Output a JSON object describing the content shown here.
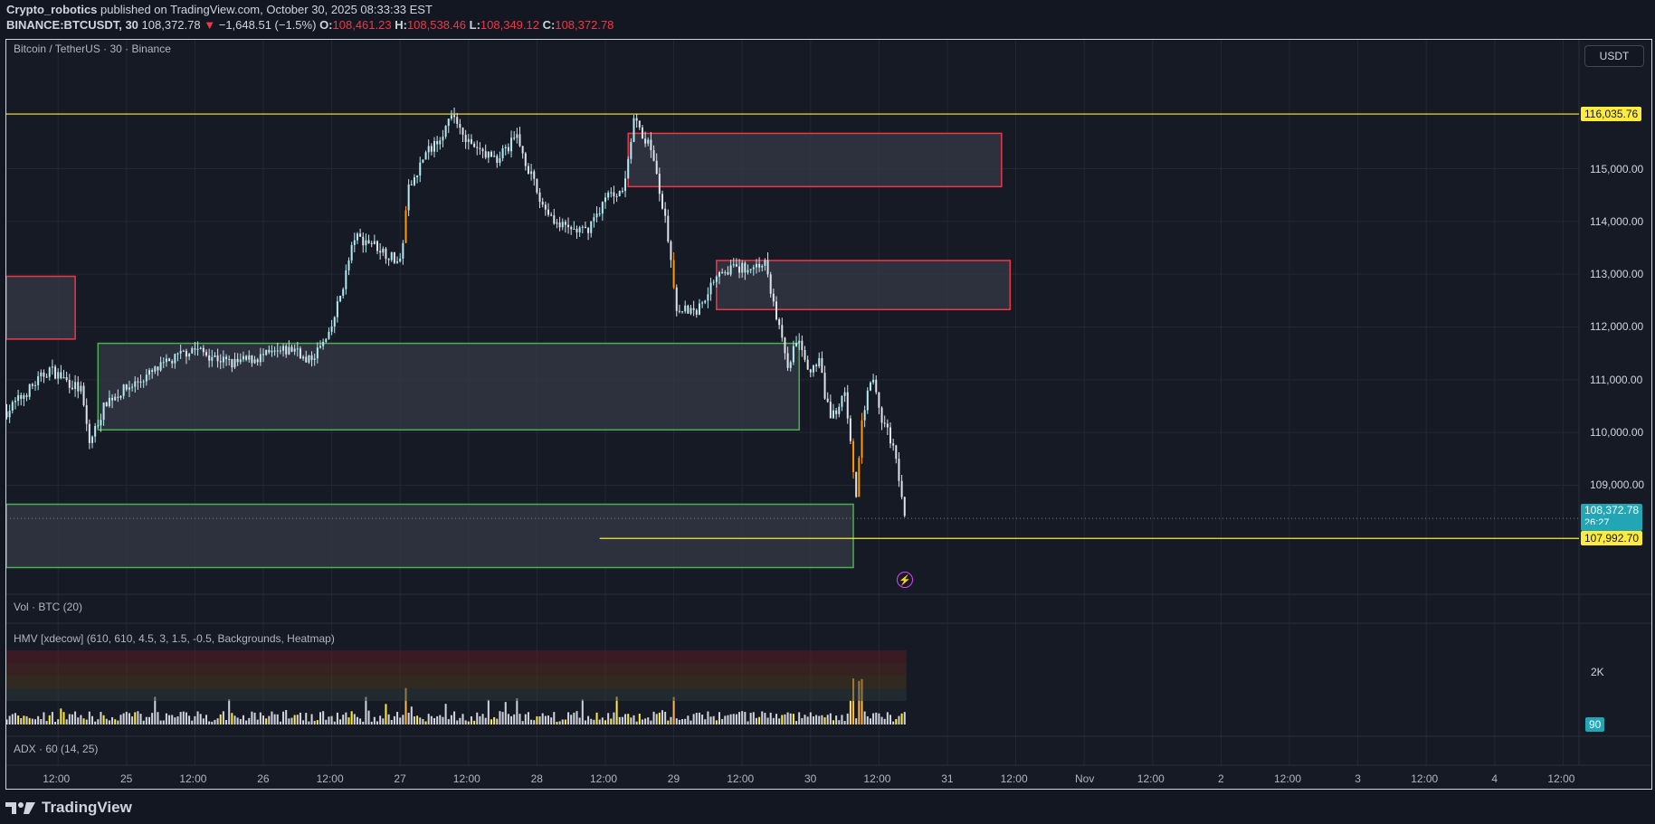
{
  "header": {
    "author": "Crypto_robotics",
    "published_text": "published on TradingView.com, October 30, 2025 08:33:33 EST",
    "symbol": "BINANCE:BTCUSDT, 30",
    "last": "108,372.78",
    "change": "−1,648.51 (−1.5%)",
    "o_label": "O:",
    "o": "108,461.23",
    "h_label": "H:",
    "h": "108,538.46",
    "l_label": "L:",
    "l": "108,349.12",
    "c_label": "C:",
    "c": "108,372.78"
  },
  "chart": {
    "title": "Bitcoin / TetherUS · 30 · Binance",
    "currency_button": "USDT",
    "vol_label": "Vol · BTC (20)",
    "hmv_label": "HMV [xdecow] (610, 610, 4.5, 3, 1.5, -0.5, Backgrounds, Heatmap)",
    "adx_label": "ADX · 60 (14, 25)",
    "vol_axis_label": "2K",
    "vol_current": "90",
    "countdown": "26:27",
    "logo_text": "TradingView"
  },
  "colors": {
    "background": "#161a25",
    "level_line": "#ffeb3b",
    "supply_zone_border": "#f23645",
    "demand_zone_border": "#4caf50",
    "zone_fill": "#363a45",
    "last_price": "#22a5b5",
    "candle_up": "#b2ebf2",
    "candle_down": "#e0e3eb",
    "highlight_candle": "#ff9800"
  },
  "chart_data": {
    "type": "candlestick",
    "interval": "30",
    "price_axis_ticks": [
      "115,000.00",
      "114,000.00",
      "113,000.00",
      "112,000.00",
      "111,000.00",
      "110,000.00",
      "109,000.00"
    ],
    "price_axis_values": [
      115000,
      114000,
      113000,
      112000,
      111000,
      110000,
      109000
    ],
    "time_axis_ticks": [
      {
        "label": "12:00",
        "t": "2025-10-24 12:00"
      },
      {
        "label": "25",
        "t": "2025-10-25 00:00"
      },
      {
        "label": "12:00",
        "t": "2025-10-25 12:00"
      },
      {
        "label": "26",
        "t": "2025-10-26 00:00"
      },
      {
        "label": "12:00",
        "t": "2025-10-26 12:00"
      },
      {
        "label": "27",
        "t": "2025-10-27 00:00"
      },
      {
        "label": "12:00",
        "t": "2025-10-27 12:00"
      },
      {
        "label": "28",
        "t": "2025-10-28 00:00"
      },
      {
        "label": "12:00",
        "t": "2025-10-28 12:00"
      },
      {
        "label": "29",
        "t": "2025-10-29 00:00"
      },
      {
        "label": "12:00",
        "t": "2025-10-29 12:00"
      },
      {
        "label": "30",
        "t": "2025-10-30 00:00"
      },
      {
        "label": "12:00",
        "t": "2025-10-30 12:00"
      },
      {
        "label": "31",
        "t": "2025-10-31 00:00"
      },
      {
        "label": "12:00",
        "t": "2025-10-31 12:00"
      },
      {
        "label": "Nov",
        "t": "2025-11-01 00:00"
      },
      {
        "label": "12:00",
        "t": "2025-11-01 12:00"
      },
      {
        "label": "2",
        "t": "2025-11-02 00:00"
      },
      {
        "label": "12:00",
        "t": "2025-11-02 12:00"
      },
      {
        "label": "3",
        "t": "2025-11-03 00:00"
      },
      {
        "label": "12:00",
        "t": "2025-11-03 12:00"
      },
      {
        "label": "4",
        "t": "2025-11-04 00:00"
      },
      {
        "label": "12:00",
        "t": "2025-11-04 12:00"
      }
    ],
    "price_path": [
      [
        "2025-10-24 03:00",
        110400
      ],
      [
        "2025-10-24 10:30",
        111200
      ],
      [
        "2025-10-24 16:00",
        110800
      ],
      [
        "2025-10-24 17:30",
        109800
      ],
      [
        "2025-10-24 20:30",
        110600
      ],
      [
        "2025-10-25 11:30",
        111600
      ],
      [
        "2025-10-25 18:30",
        111300
      ],
      [
        "2025-10-26 06:00",
        111600
      ],
      [
        "2025-10-26 07:30",
        111300
      ],
      [
        "2025-10-26 11:30",
        111800
      ],
      [
        "2025-10-26 14:00",
        112800
      ],
      [
        "2025-10-26 16:00",
        113700
      ],
      [
        "2025-10-26 19:00",
        113600
      ],
      [
        "2025-10-27 00:00",
        113200
      ],
      [
        "2025-10-27 01:30",
        114600
      ],
      [
        "2025-10-27 04:00",
        115200
      ],
      [
        "2025-10-27 09:30",
        116000
      ],
      [
        "2025-10-27 12:30",
        115400
      ],
      [
        "2025-10-27 17:00",
        115200
      ],
      [
        "2025-10-27 20:30",
        115600
      ],
      [
        "2025-10-28 00:30",
        114400
      ],
      [
        "2025-10-28 04:00",
        113900
      ],
      [
        "2025-10-28 08:30",
        113800
      ],
      [
        "2025-10-28 12:30",
        114500
      ],
      [
        "2025-10-28 15:00",
        114600
      ],
      [
        "2025-10-28 17:00",
        115900
      ],
      [
        "2025-10-28 20:00",
        115400
      ],
      [
        "2025-10-28 22:30",
        114000
      ],
      [
        "2025-10-29 00:30",
        112400
      ],
      [
        "2025-10-29 04:00",
        112300
      ],
      [
        "2025-10-29 08:00",
        113100
      ],
      [
        "2025-10-29 11:30",
        113100
      ],
      [
        "2025-10-29 16:00",
        113200
      ],
      [
        "2025-10-29 18:00",
        112200
      ],
      [
        "2025-10-29 20:00",
        111300
      ],
      [
        "2025-10-29 22:00",
        111800
      ],
      [
        "2025-10-29 23:30",
        111100
      ],
      [
        "2025-10-30 01:30",
        111300
      ],
      [
        "2025-10-30 03:30",
        110200
      ],
      [
        "2025-10-30 06:00",
        110800
      ],
      [
        "2025-10-30 08:00",
        108700
      ],
      [
        "2025-10-30 09:00",
        110200
      ],
      [
        "2025-10-30 10:45",
        111200
      ],
      [
        "2025-10-30 12:30",
        110200
      ],
      [
        "2025-10-30 14:30",
        109800
      ],
      [
        "2025-10-30 16:30",
        108373
      ]
    ],
    "zones": [
      {
        "kind": "supply",
        "from": "2025-10-23 23:00",
        "to": "2025-10-24 15:00",
        "top": 112960,
        "bottom": 111770
      },
      {
        "kind": "demand",
        "from": "2025-10-24 19:00",
        "to": "2025-10-29 22:00",
        "top": 111690,
        "bottom": 110050
      },
      {
        "kind": "demand",
        "from": "2025-10-23 23:00",
        "to": "2025-10-30 07:30",
        "top": 108640,
        "bottom": 107440
      },
      {
        "kind": "supply",
        "from": "2025-10-28 16:00",
        "to": "2025-10-31 09:30",
        "top": 115670,
        "bottom": 114660
      },
      {
        "kind": "supply",
        "from": "2025-10-29 07:30",
        "to": "2025-10-31 11:00",
        "top": 113260,
        "bottom": 112330
      }
    ],
    "levels": [
      {
        "price": 116035.76,
        "label": "116,035.76",
        "from": "2025-10-23 23:00"
      },
      {
        "price": 107992.7,
        "label": "107,992.70",
        "from": "2025-10-28 11:00"
      }
    ],
    "last_price": {
      "price": 108372.78,
      "label": "108,372.78"
    }
  }
}
